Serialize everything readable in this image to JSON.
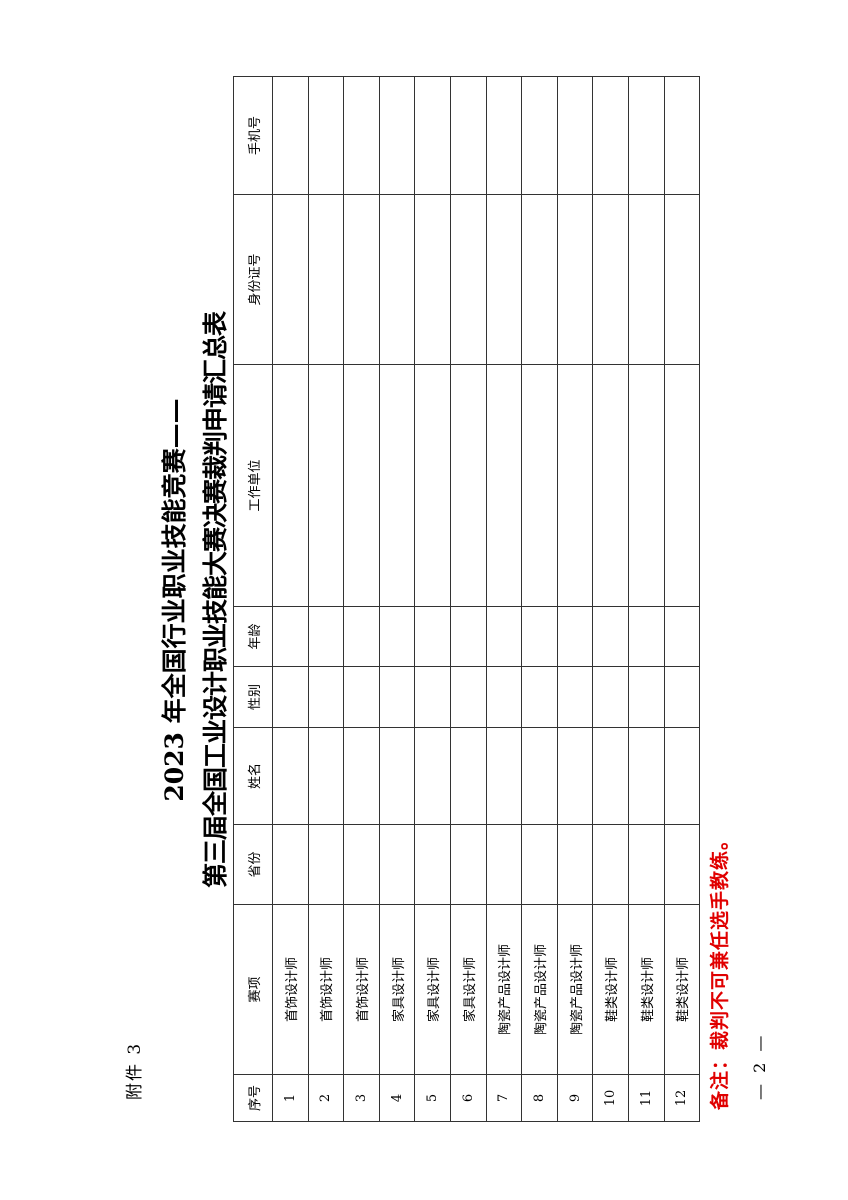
{
  "attachment_label": "附件 3",
  "title_line1": "2023 年全国行业职业技能竞赛——",
  "title_line2": "第三届全国工业设计职业技能大赛决赛裁判申请汇总表",
  "table": {
    "headers": [
      "序号",
      "赛项",
      "省份",
      "姓名",
      "性别",
      "年龄",
      "工作单位",
      "身份证号",
      "手机号"
    ],
    "rows": [
      {
        "no": "1",
        "event": "首饰设计师"
      },
      {
        "no": "2",
        "event": "首饰设计师"
      },
      {
        "no": "3",
        "event": "首饰设计师"
      },
      {
        "no": "4",
        "event": "家具设计师"
      },
      {
        "no": "5",
        "event": "家具设计师"
      },
      {
        "no": "6",
        "event": "家具设计师"
      },
      {
        "no": "7",
        "event": "陶瓷产品设计师"
      },
      {
        "no": "8",
        "event": "陶瓷产品设计师"
      },
      {
        "no": "9",
        "event": "陶瓷产品设计师"
      },
      {
        "no": "10",
        "event": "鞋类设计师"
      },
      {
        "no": "11",
        "event": "鞋类设计师"
      },
      {
        "no": "12",
        "event": "鞋类设计师"
      }
    ]
  },
  "note": "备注：裁判不可兼任选手教练。",
  "note_color": "#e00000",
  "page_number": "— 2 —"
}
